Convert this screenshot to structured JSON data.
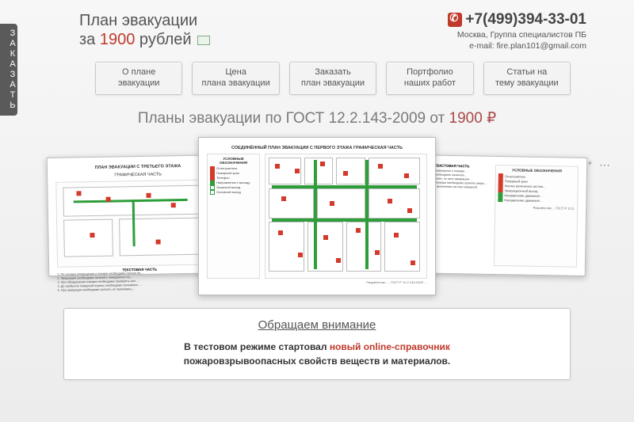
{
  "side_tab": {
    "label": "ЗАКАЗАТЬ"
  },
  "header": {
    "title_line1": "План эвакуации",
    "title_line2_prefix": "за ",
    "price": "1900",
    "title_line2_suffix": " рублей"
  },
  "contact": {
    "phone": "+7(499)394-33-01",
    "city_group": "Москва, Группа специалистов ПБ",
    "email_prefix": "e-mail: ",
    "email": "fire.plan101@gmail.com"
  },
  "nav": [
    {
      "l1": "О плане",
      "l2": "эвакуации"
    },
    {
      "l1": "Цена",
      "l2": "плана эвакуации"
    },
    {
      "l1": "Заказать",
      "l2": "план эвакуации"
    },
    {
      "l1": "Портфолио",
      "l2": "наших  работ"
    },
    {
      "l1": "Статьи на",
      "l2": "тему эвакуации"
    }
  ],
  "headline": {
    "text": "Планы эвакуации по ГОСТ 12.2.143-2009 от ",
    "price": "1900 ₽"
  },
  "gallery": {
    "left": {
      "title": "ПЛАН ЭВАКУАЦИИ С ТРЕТЬЕГО ЭТАЖА",
      "subtitle": "ГРАФИЧЕСКАЯ ЧАСТЬ",
      "text_title": "ТЕКСТОВАЯ ЧАСТЬ",
      "text_lines": [
        "1. По сигналу оповещения о пожаре необходимо срочно по…",
        "2. Эвакуацию необходимо начинать немедленно по…",
        "3. При обнаружении пожара необходимо проверить вкл…",
        "4. До прибытия пожарной охраны необходимо принимать…",
        "5. При эвакуации необходимо просить не паниковать…"
      ]
    },
    "center": {
      "title": "СОЕДИНЁННЫЙ ПЛАН ЭВАКУАЦИИ С ПЕРВОГО ЭТАЖА   ГРАФИЧЕСКАЯ ЧАСТЬ",
      "legend_title": "УСЛОВНЫЕ ОБОЗНАЧЕНИЯ",
      "legend": [
        {
          "c": "red",
          "t": "Огнетушитель"
        },
        {
          "c": "red",
          "t": "Пожарный кран"
        },
        {
          "c": "red",
          "t": "Телефон"
        },
        {
          "c": "green",
          "t": "Направление к выходу"
        },
        {
          "c": "greenb",
          "t": "Запасной выход"
        },
        {
          "c": "greenb",
          "t": "Основной выход"
        }
      ],
      "foot": "Разработчик: … ГОСТ Р 12.2.143-2009 …"
    },
    "right": {
      "text_title": "ТЕКСТОВАЯ ЧАСТЬ",
      "legend_title": "УСЛОВНЫЕ ОБОЗНАЧЕНИЯ",
      "legend": [
        {
          "c": "red",
          "t": "Огнетушитель"
        },
        {
          "c": "red",
          "t": "Пожарный кран"
        },
        {
          "c": "red",
          "t": "Кнопка включения систем…"
        },
        {
          "c": "red",
          "t": "Эвакуационный выход"
        },
        {
          "c": "green",
          "t": "Направление движения…"
        },
        {
          "c": "green",
          "t": "Направление движения…"
        }
      ],
      "text_lines": [
        "1. По сигналу оповещения о пожаре…",
        "2. Эвакуацию, необходимо начинать…",
        "3. При обнаружении, по пути эвакуации…",
        "4. До прибытия пожара необходимо принять меры…",
        "5. Организовать включение систем пожарной автоматики…"
      ],
      "foot": "Разработчик… ГОСТ Р 12.2."
    }
  },
  "social_icons": [
    "facebook-icon",
    "twitter-icon",
    "ok-icon",
    "vk-icon",
    "gplus-icon",
    "more-icon"
  ],
  "notice": {
    "title": "Обращаем внимание",
    "line_bold": "В тестовом режиме стартовал ",
    "link": "новый online-справочник",
    "line2": "пожаровзрывоопасных свойств веществ и материалов."
  },
  "colors": {
    "accent_red": "#c0392b",
    "route_green": "#2e9e3a",
    "hazard_red": "#d43a2a",
    "text_grey": "#555555",
    "bg": "#f3f3f3",
    "border": "#c9c9c9"
  }
}
